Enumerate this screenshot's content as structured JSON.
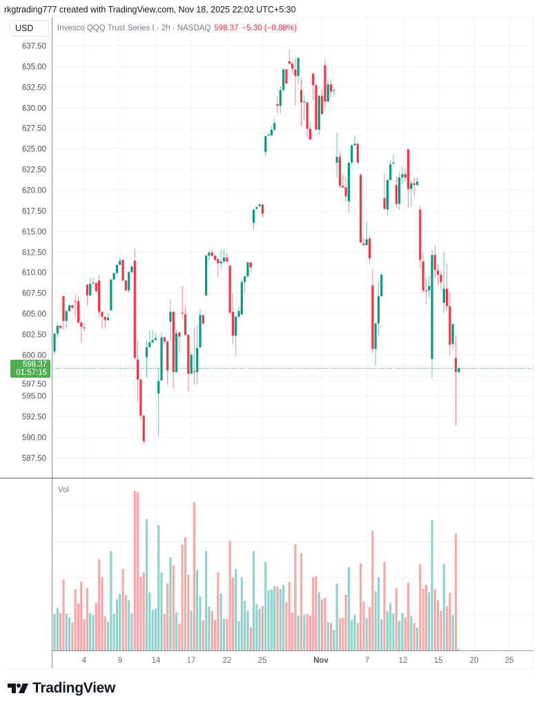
{
  "header": {
    "attribution": "rkgtrading777 created with TradingView.com, Nov 18, 2025 22:02 UTC+5:30",
    "currency_button": "USD"
  },
  "legend": {
    "title": "Invesco QQQ Trust Series I · 2h · NASDAQ",
    "price": "598.37",
    "change": "−5.30 (−0.88%)"
  },
  "last_price_tag": {
    "price": "598.37",
    "countdown": "01:57:15"
  },
  "volume_pane": {
    "label": "Vol"
  },
  "logo": {
    "text": "TradingView"
  },
  "colors": {
    "up": "#089981",
    "down": "#f23645",
    "vol_up": "#92d2cc",
    "vol_down": "#f7a9a7",
    "last_price": "#4caf50",
    "grid": "#f0f3fa"
  },
  "chart_data": {
    "type": "candlestick",
    "title": "Invesco QQQ Trust Series I · 2h · NASDAQ",
    "ylim": [
      585.5,
      639.5
    ],
    "y_ticks": [
      "637.50",
      "635.00",
      "632.50",
      "630.00",
      "627.50",
      "625.00",
      "622.50",
      "620.00",
      "617.50",
      "615.00",
      "612.50",
      "610.00",
      "607.50",
      "605.00",
      "602.50",
      "600.00",
      "597.50",
      "595.00",
      "592.50",
      "590.00",
      "587.50"
    ],
    "x_ticks": [
      "4",
      "9",
      "14",
      "17",
      "22",
      "25",
      "Nov",
      "7",
      "12",
      "15",
      "20",
      "25"
    ],
    "last_price": 598.37,
    "ohlc": [
      [
        600.37,
        602.7,
        600.0,
        602.55
      ],
      [
        602.55,
        603.8,
        602.1,
        603.5
      ],
      [
        603.5,
        603.6,
        603.1,
        603.25
      ],
      [
        607.1,
        607.2,
        603.0,
        604.1
      ],
      [
        604.1,
        605.4,
        603.2,
        605.3
      ],
      [
        605.3,
        606.1,
        605.2,
        606.0
      ],
      [
        606.0,
        606.1,
        605.5,
        605.7
      ],
      [
        606.5,
        607.3,
        604.6,
        606.4
      ],
      [
        606.5,
        607.0,
        603.8,
        603.9
      ],
      [
        603.9,
        604.0,
        601.4,
        603.4
      ],
      [
        603.3,
        603.8,
        602.8,
        603.2
      ],
      [
        608.5,
        608.6,
        606.0,
        607.2
      ],
      [
        607.2,
        609.3,
        607.1,
        608.6
      ],
      [
        608.7,
        609.4,
        608.4,
        608.75
      ],
      [
        608.7,
        608.8,
        607.6,
        607.7
      ],
      [
        609.0,
        609.7,
        604.5,
        605.2
      ],
      [
        605.2,
        605.3,
        603.1,
        604.6
      ],
      [
        604.6,
        604.7,
        603.2,
        604.2
      ],
      [
        604.2,
        605.1,
        604.1,
        604.5
      ],
      [
        605.4,
        609.2,
        605.3,
        609.1
      ],
      [
        609.1,
        610.0,
        609.0,
        609.9
      ],
      [
        609.9,
        611.0,
        609.8,
        610.9
      ],
      [
        610.9,
        611.8,
        610.8,
        611.4
      ],
      [
        611.5,
        611.6,
        608.9,
        609.0
      ],
      [
        609.0,
        609.1,
        607.7,
        607.8
      ],
      [
        607.8,
        610.1,
        607.5,
        610.0
      ],
      [
        610.0,
        610.8,
        609.9,
        610.7
      ],
      [
        611.4,
        612.9,
        599.5,
        599.6
      ],
      [
        599.4,
        601.7,
        594.3,
        597.0
      ],
      [
        597.0,
        597.1,
        592.1,
        592.6
      ],
      [
        592.6,
        592.7,
        589.1,
        589.5
      ],
      [
        599.7,
        601.7,
        597.2,
        600.9
      ],
      [
        600.9,
        603.0,
        600.8,
        601.5
      ],
      [
        601.5,
        603.0,
        601.4,
        601.8
      ],
      [
        601.8,
        602.6,
        601.7,
        602.0
      ],
      [
        595.3,
        598.4,
        590.1,
        596.8
      ],
      [
        596.9,
        602.7,
        596.8,
        602.1
      ],
      [
        602.1,
        602.2,
        601.2,
        601.6
      ],
      [
        601.6,
        601.7,
        596.4,
        598.1
      ],
      [
        604.0,
        606.7,
        601.6,
        605.2
      ],
      [
        605.2,
        605.3,
        595.9,
        597.9
      ],
      [
        597.9,
        603.0,
        597.8,
        602.6
      ],
      [
        602.7,
        602.8,
        600.3,
        602.2
      ],
      [
        605.1,
        608.3,
        604.4,
        605.0
      ],
      [
        604.9,
        605.8,
        602.3,
        602.4
      ],
      [
        602.4,
        602.5,
        595.5,
        597.7
      ],
      [
        597.7,
        600.3,
        597.6,
        600.0
      ],
      [
        598.0,
        603.3,
        596.4,
        597.9
      ],
      [
        597.9,
        603.6,
        596.4,
        600.8
      ],
      [
        600.9,
        605.5,
        600.8,
        604.8
      ],
      [
        604.8,
        604.9,
        603.6,
        603.8
      ],
      [
        607.2,
        612.1,
        607.1,
        612.0
      ],
      [
        612.0,
        612.7,
        611.3,
        612.4
      ],
      [
        612.4,
        612.7,
        611.9,
        612.0
      ],
      [
        612.0,
        612.1,
        611.4,
        611.5
      ],
      [
        611.6,
        611.7,
        609.4,
        611.1
      ],
      [
        611.1,
        612.7,
        610.4,
        611.3
      ],
      [
        611.3,
        612.7,
        611.2,
        611.8
      ],
      [
        611.8,
        612.4,
        611.2,
        611.3
      ],
      [
        610.8,
        610.9,
        605.0,
        605.1
      ],
      [
        605.2,
        607.5,
        601.3,
        602.3
      ],
      [
        602.3,
        604.7,
        599.8,
        604.6
      ],
      [
        604.6,
        605.8,
        604.5,
        605.3
      ],
      [
        604.9,
        609.2,
        604.8,
        608.8
      ],
      [
        608.8,
        609.6,
        607.5,
        609.5
      ],
      [
        609.5,
        611.3,
        609.4,
        611.2
      ],
      [
        611.2,
        611.3,
        610.1,
        610.6
      ],
      [
        616.0,
        617.7,
        615.2,
        617.6
      ],
      [
        617.7,
        618.0,
        617.6,
        617.9
      ],
      [
        618.0,
        618.4,
        617.9,
        618.2
      ],
      [
        618.2,
        618.3,
        616.7,
        617.1
      ],
      [
        624.6,
        626.6,
        624.1,
        626.5
      ],
      [
        626.6,
        627.0,
        626.5,
        626.7
      ],
      [
        626.6,
        627.7,
        626.5,
        627.3
      ],
      [
        627.3,
        628.6,
        627.2,
        628.1
      ],
      [
        630.4,
        631.4,
        629.3,
        630.2
      ],
      [
        630.2,
        632.6,
        629.3,
        632.1
      ],
      [
        632.1,
        634.7,
        632.0,
        634.6
      ],
      [
        634.6,
        634.7,
        632.8,
        632.9
      ],
      [
        635.6,
        637.0,
        635.2,
        635.3
      ],
      [
        635.3,
        635.6,
        634.1,
        634.7
      ],
      [
        634.6,
        636.0,
        630.2,
        633.8
      ],
      [
        633.8,
        636.1,
        632.8,
        636.0
      ],
      [
        632.1,
        633.5,
        627.8,
        630.6
      ],
      [
        630.6,
        631.5,
        628.4,
        630.7
      ],
      [
        630.6,
        630.7,
        626.4,
        627.4
      ],
      [
        627.4,
        628.2,
        626.0,
        626.1
      ],
      [
        634.1,
        634.2,
        630.9,
        632.7
      ],
      [
        632.7,
        632.8,
        627.2,
        627.3
      ],
      [
        627.3,
        631.5,
        626.7,
        631.4
      ],
      [
        631.4,
        632.2,
        629.1,
        629.2
      ],
      [
        635.1,
        635.8,
        629.9,
        630.7
      ],
      [
        630.7,
        633.3,
        630.6,
        632.8
      ],
      [
        632.8,
        633.4,
        631.2,
        631.9
      ],
      [
        632.0,
        632.2,
        631.3,
        632.1
      ],
      [
        623.3,
        626.9,
        621.5,
        624.0
      ],
      [
        624.0,
        624.6,
        620.2,
        620.5
      ],
      [
        620.5,
        622.0,
        620.2,
        620.3
      ],
      [
        620.3,
        621.5,
        618.5,
        619.2
      ],
      [
        618.6,
        623.4,
        617.3,
        623.3
      ],
      [
        623.3,
        625.5,
        623.1,
        625.4
      ],
      [
        625.4,
        626.6,
        625.3,
        625.6
      ],
      [
        625.6,
        625.7,
        623.1,
        623.3
      ],
      [
        621.8,
        622.0,
        613.5,
        613.6
      ],
      [
        613.5,
        614.2,
        613.2,
        613.3
      ],
      [
        613.3,
        616.1,
        613.2,
        614.0
      ],
      [
        614.1,
        614.5,
        611.0,
        611.7
      ],
      [
        608.4,
        610.4,
        600.2,
        600.7
      ],
      [
        600.7,
        603.9,
        598.7,
        603.8
      ],
      [
        603.8,
        608.8,
        602.3,
        607.1
      ],
      [
        607.1,
        610.0,
        607.0,
        609.7
      ],
      [
        619.0,
        622.0,
        617.5,
        617.7
      ],
      [
        617.6,
        621.3,
        616.9,
        621.2
      ],
      [
        621.2,
        623.6,
        621.1,
        623.1
      ],
      [
        623.2,
        624.3,
        623.0,
        623.3
      ],
      [
        620.6,
        621.6,
        617.8,
        618.3
      ],
      [
        618.3,
        622.1,
        617.6,
        621.5
      ],
      [
        621.5,
        622.8,
        620.7,
        621.9
      ],
      [
        621.9,
        622.6,
        621.0,
        621.5
      ],
      [
        624.9,
        625.0,
        617.9,
        620.1
      ],
      [
        620.1,
        621.2,
        618.0,
        620.8
      ],
      [
        620.8,
        621.5,
        619.2,
        620.6
      ],
      [
        620.6,
        621.5,
        620.4,
        621.0
      ],
      [
        617.6,
        618.1,
        610.5,
        611.5
      ],
      [
        611.3,
        612.4,
        607.5,
        607.8
      ],
      [
        607.8,
        609.3,
        606.1,
        607.7
      ],
      [
        607.8,
        609.5,
        606.9,
        608.35
      ],
      [
        599.5,
        612.7,
        597.2,
        612.1
      ],
      [
        612.1,
        613.3,
        609.2,
        610.3
      ],
      [
        610.2,
        611.0,
        608.5,
        609.7
      ],
      [
        609.7,
        610.1,
        607.9,
        608.8
      ],
      [
        606.3,
        612.5,
        605.1,
        608.0
      ],
      [
        608.0,
        611.1,
        605.3,
        605.9
      ],
      [
        605.9,
        607.6,
        599.9,
        601.2
      ],
      [
        601.3,
        603.8,
        600.6,
        603.7
      ],
      [
        599.6,
        602.3,
        591.4,
        597.9
      ],
      [
        597.9,
        598.5,
        597.7,
        598.37
      ]
    ],
    "volume_relative": [
      22.6,
      26.4,
      23.3,
      44,
      22.6,
      20.4,
      17.4,
      38,
      29.3,
      42.7,
      19.3,
      38.6,
      23,
      21.9,
      29.3,
      56.6,
      45.4,
      21.3,
      17.7,
      61.7,
      22.6,
      31.9,
      35,
      50.7,
      34.3,
      31.1,
      23,
      98.9,
      98.3,
      45.7,
      48.3,
      81.4,
      36,
      25.3,
      25.9,
      77.7,
      48.4,
      22.6,
      41.6,
      57.9,
      52.6,
      23.6,
      16.6,
      65.7,
      70.3,
      47,
      24.7,
      92,
      50,
      33.4,
      18.6,
      61.7,
      27,
      24.6,
      19.1,
      48.4,
      35.3,
      19.6,
      19.3,
      68,
      45,
      50.4,
      18.1,
      45.4,
      30.9,
      24.6,
      14.4,
      61.7,
      28.6,
      25.7,
      27.7,
      55,
      37.1,
      37.9,
      40,
      39.7,
      38.3,
      40.6,
      29.9,
      42.4,
      23.4,
      65.9,
      21.6,
      60.3,
      22.1,
      22.6,
      21.6,
      45.6,
      46.1,
      36,
      31.7,
      32.6,
      17.7,
      17.1,
      12.7,
      41.4,
      20,
      20.4,
      34.7,
      51.7,
      19.1,
      22.1,
      16.9,
      54.1,
      30.3,
      20,
      26.9,
      74.1,
      36.7,
      45.4,
      19.1,
      55,
      24.3,
      29.3,
      22.9,
      38.7,
      18.4,
      23.3,
      20.6,
      42.1,
      21.3,
      17.1,
      14.3,
      53.6,
      38.3,
      40.7,
      36.1,
      81.1,
      37.9,
      31.1,
      24.6,
      53.6,
      27.4,
      35.7,
      21.9,
      72.6,
      1
    ]
  }
}
